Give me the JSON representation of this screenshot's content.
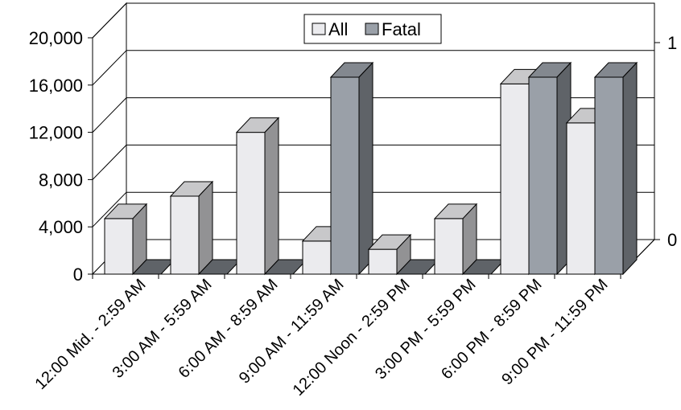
{
  "chart_data": {
    "type": "bar",
    "categories": [
      "12:00 Mid. - 2:59 AM",
      "3:00 AM - 5:59 AM",
      "6:00 AM - 8:59 AM",
      "9:00 AM - 11:59 AM",
      "12:00 Noon - 2:59 PM",
      "3:00 PM - 5:59 PM",
      "6:00 PM - 8:59 PM",
      "9:00 PM - 11:59 PM"
    ],
    "series": [
      {
        "name": "All",
        "axis": "left",
        "values": [
          4700,
          6600,
          12000,
          2800,
          2100,
          4700,
          16100,
          12800
        ],
        "color": "#ebebee"
      },
      {
        "name": "Fatal",
        "axis": "right",
        "values": [
          0,
          0,
          0,
          1,
          0,
          0,
          1,
          1
        ],
        "color": "#9aa0a8"
      }
    ],
    "yticks_left": [
      "0",
      "4,000",
      "8,000",
      "12,000",
      "16,000",
      "20,000"
    ],
    "yticks_right": [
      "0",
      "1"
    ],
    "ylim_left": [
      0,
      20000
    ],
    "ylim_right": [
      0,
      1.2
    ],
    "grid": true,
    "legend": "top-center"
  }
}
